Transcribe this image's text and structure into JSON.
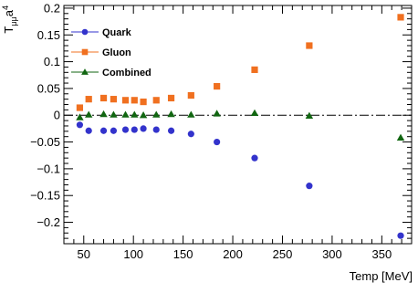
{
  "chart_data": {
    "type": "scatter",
    "title": "",
    "xlabel": "Temp [MeV]",
    "ylabel_main": "T",
    "ylabel_sub": "μμ",
    "ylabel_tail": "a",
    "ylabel_sup": "4",
    "xlim": [
      30,
      380
    ],
    "ylim": [
      -0.24,
      0.205
    ],
    "xticks": [
      50,
      100,
      150,
      200,
      250,
      300,
      350
    ],
    "xtick_labels": [
      "50",
      "100",
      "150",
      "200",
      "250",
      "300",
      "350"
    ],
    "yticks": [
      -0.2,
      -0.15,
      -0.1,
      -0.05,
      0,
      0.05,
      0.1,
      0.15,
      0.2
    ],
    "ytick_labels": [
      "−0.2",
      "−0.15",
      "−0.1",
      "−0.05",
      "0",
      "0.05",
      "0.1",
      "0.15",
      "0.2"
    ],
    "grid": false,
    "legend_position": "top-left",
    "reference_line": {
      "y": 0,
      "style": "dash-dot"
    },
    "series": [
      {
        "name": "Quark",
        "marker": "circle",
        "color": "#3333cc",
        "x": [
          46,
          55,
          70,
          80,
          92,
          101,
          110,
          123,
          138,
          158,
          184,
          222,
          277,
          369
        ],
        "y": [
          -0.018,
          -0.029,
          -0.029,
          -0.029,
          -0.027,
          -0.027,
          -0.025,
          -0.027,
          -0.029,
          -0.035,
          -0.05,
          -0.08,
          -0.132,
          -0.225
        ]
      },
      {
        "name": "Gluon",
        "marker": "square",
        "color": "#f07020",
        "x": [
          46,
          55,
          70,
          80,
          92,
          101,
          110,
          123,
          138,
          158,
          184,
          222,
          277,
          369
        ],
        "y": [
          0.014,
          0.03,
          0.032,
          0.03,
          0.028,
          0.028,
          0.025,
          0.028,
          0.032,
          0.037,
          0.054,
          0.085,
          0.13,
          0.183
        ]
      },
      {
        "name": "Combined",
        "marker": "triangle",
        "color": "#116611",
        "x": [
          46,
          55,
          70,
          80,
          92,
          101,
          110,
          123,
          138,
          158,
          184,
          222,
          277,
          369
        ],
        "y": [
          -0.004,
          0.001,
          0.002,
          0.001,
          0.001,
          0.001,
          0.0,
          0.001,
          0.002,
          0.001,
          0.003,
          0.004,
          -0.001,
          -0.042
        ]
      }
    ]
  }
}
